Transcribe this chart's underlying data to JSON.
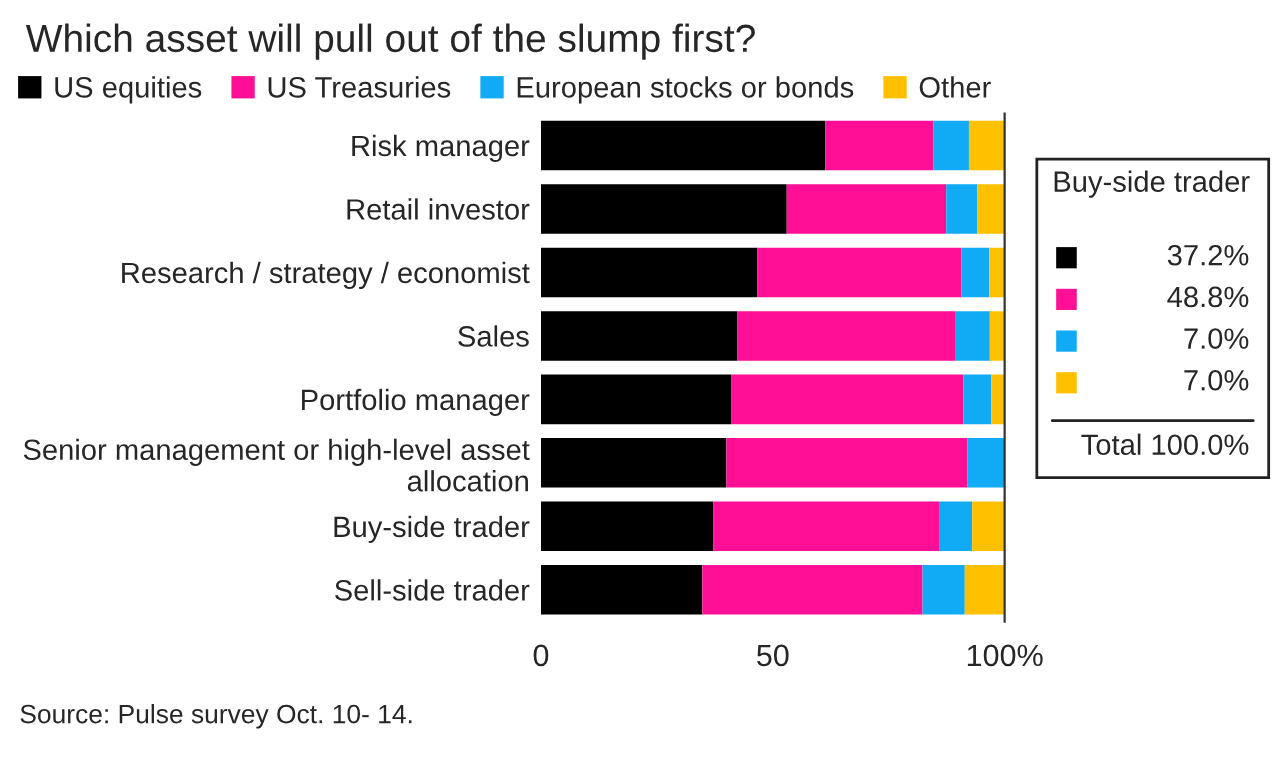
{
  "chart_data": {
    "type": "bar",
    "orientation": "horizontal",
    "stacked": true,
    "title": "Which asset will pull out of the slump first?",
    "categories": [
      "Risk manager",
      "Retail investor",
      "Research / strategy / economist",
      "Sales",
      "Portfolio manager",
      "Senior management or high-level asset allocation",
      "Buy-side trader",
      "Sell-side trader"
    ],
    "series": [
      {
        "name": "US equities",
        "color": "#000000",
        "values": [
          61.3,
          53.0,
          46.7,
          42.3,
          41.1,
          40.0,
          37.2,
          34.8
        ]
      },
      {
        "name": "US Treasuries",
        "color": "#ff0f96",
        "values": [
          23.3,
          34.4,
          44.0,
          47.0,
          50.0,
          52.0,
          48.8,
          47.5
        ]
      },
      {
        "name": "European stocks or bonds",
        "color": "#11aaf5",
        "values": [
          7.7,
          6.7,
          6.0,
          7.5,
          6.0,
          8.0,
          7.0,
          9.1
        ]
      },
      {
        "name": "Other",
        "color": "#ffc000",
        "values": [
          7.7,
          5.9,
          3.3,
          3.2,
          2.9,
          0.0,
          7.0,
          8.6
        ]
      }
    ],
    "xlim": [
      0,
      100
    ],
    "xticks": [
      0,
      50,
      {
        "value": 100,
        "label": "100%"
      }
    ],
    "grid": false,
    "legend": "top left",
    "annotations": [
      "Buy-side trader",
      "37.2%",
      "48.8%",
      "7.0%",
      "7.0%",
      "Total 100.0%",
      "Source: Pulse survey Oct. 10- 14."
    ]
  }
}
